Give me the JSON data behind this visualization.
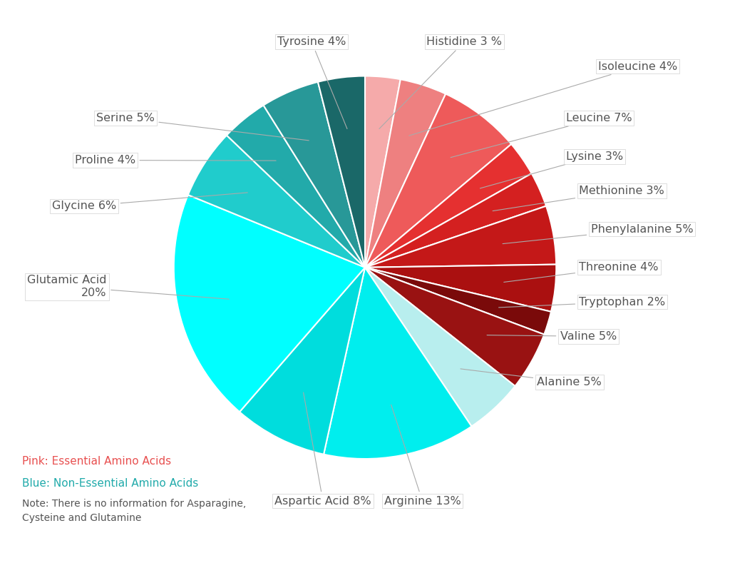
{
  "slices": [
    {
      "label": "Histidine 3 %",
      "value": 3,
      "color": "#F5AAAA",
      "essential": true
    },
    {
      "label": "Isoleucine 4%",
      "value": 4,
      "color": "#EE8080",
      "essential": true
    },
    {
      "label": "Leucine 7%",
      "value": 7,
      "color": "#EE5A5A",
      "essential": true
    },
    {
      "label": "Lysine 3%",
      "value": 3,
      "color": "#E53030",
      "essential": true
    },
    {
      "label": "Methionine 3%",
      "value": 3,
      "color": "#D42020",
      "essential": true
    },
    {
      "label": "Phenylalanine 5%",
      "value": 5,
      "color": "#C41818",
      "essential": true
    },
    {
      "label": "Threonine 4%",
      "value": 4,
      "color": "#AA1010",
      "essential": true
    },
    {
      "label": "Tryptophan 2%",
      "value": 2,
      "color": "#7A0A0A",
      "essential": true
    },
    {
      "label": "Valine 5%",
      "value": 5,
      "color": "#991212",
      "essential": true
    },
    {
      "label": "Alanine 5%",
      "value": 5,
      "color": "#B8EEEE",
      "essential": false
    },
    {
      "label": "Arginine 13%",
      "value": 13,
      "color": "#00EEEE",
      "essential": false
    },
    {
      "label": "Aspartic Acid 8%",
      "value": 8,
      "color": "#00DDDD",
      "essential": false
    },
    {
      "label": "Glutamic Acid\n20%",
      "value": 20,
      "color": "#00FFFF",
      "essential": false
    },
    {
      "label": "Glycine 6%",
      "value": 6,
      "color": "#20CCCC",
      "essential": false
    },
    {
      "label": "Proline 4%",
      "value": 4,
      "color": "#22AAAA",
      "essential": false
    },
    {
      "label": "Serine 5%",
      "value": 5,
      "color": "#289898",
      "essential": false
    },
    {
      "label": "Tyrosine 4%",
      "value": 4,
      "color": "#1A6868",
      "essential": false
    }
  ],
  "legend_pink_text": "Pink: Essential Amino Acids",
  "legend_blue_text": "Blue: Non-Essential Amino Acids",
  "legend_note": "Note: There is no information for Asparagine,\nCysteine and Glutamine",
  "legend_pink_color": "#E85050",
  "legend_blue_color": "#20AAAA",
  "background_color": "#FFFFFF",
  "label_color": "#555555",
  "label_fontsize": 11.5,
  "wedge_linewidth": 1.5,
  "wedge_linecolor": "#FFFFFF"
}
